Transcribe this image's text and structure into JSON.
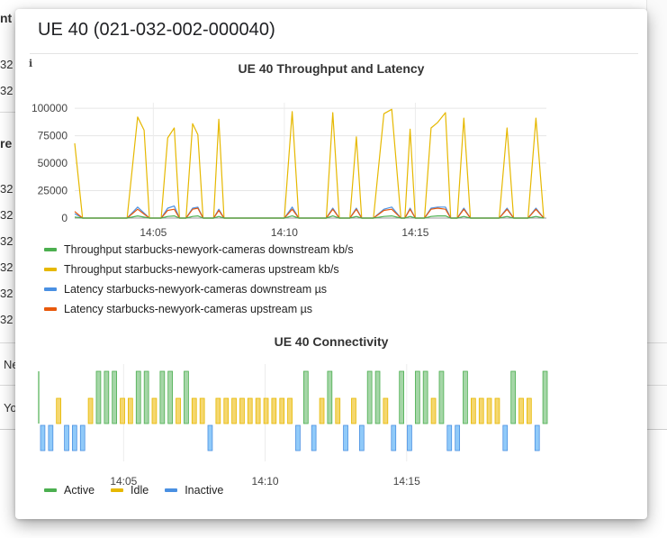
{
  "background": {
    "fragments": [
      "nt",
      "32",
      "32",
      "re",
      "32",
      "32",
      "32",
      "32",
      "32",
      "32",
      "Ne",
      "Yo"
    ]
  },
  "dialog": {
    "title": "UE 40 (021-032-002-000040)",
    "info_icon": "info-icon"
  },
  "colors": {
    "green": "#4caf50",
    "yellow": "#e6b800",
    "blue": "#4a90e2",
    "orange": "#e8590c",
    "bar_green_fill": "#a5d6a7",
    "bar_yellow_fill": "#f5d76e",
    "bar_blue_fill": "#90caf9"
  },
  "throughput_chart": {
    "title": "UE 40 Throughput and Latency",
    "yticks": [
      "100000",
      "75000",
      "50000",
      "25000",
      "0"
    ],
    "xticks": [
      "14:05",
      "14:10",
      "14:15"
    ],
    "legend": [
      {
        "label": "Throughput starbucks-newyork-cameras downstream kb/s",
        "color": "#4caf50"
      },
      {
        "label": "Throughput starbucks-newyork-cameras upstream kb/s",
        "color": "#e6b800"
      },
      {
        "label": "Latency starbucks-newyork-cameras downstream µs",
        "color": "#4a90e2"
      },
      {
        "label": "Latency starbucks-newyork-cameras upstream µs",
        "color": "#e8590c"
      }
    ]
  },
  "chart_data": [
    {
      "type": "line",
      "title": "UE 40 Throughput and Latency",
      "ylim": [
        0,
        105000
      ],
      "x_range": [
        "14:02:00",
        "14:17:00"
      ],
      "series": [
        {
          "name": "Throughput starbucks-newyork-cameras upstream kb/s",
          "color": "#e6b800",
          "points": [
            [
              0.0,
              68000
            ],
            [
              0.3,
              0
            ],
            [
              2.0,
              0
            ],
            [
              2.4,
              92000
            ],
            [
              2.65,
              80000
            ],
            [
              2.85,
              0
            ],
            [
              3.3,
              0
            ],
            [
              3.55,
              73000
            ],
            [
              3.8,
              82000
            ],
            [
              4.0,
              0
            ],
            [
              4.25,
              0
            ],
            [
              4.5,
              86000
            ],
            [
              4.7,
              76000
            ],
            [
              4.9,
              0
            ],
            [
              5.3,
              0
            ],
            [
              5.5,
              90000
            ],
            [
              5.7,
              0
            ],
            [
              8.0,
              0
            ],
            [
              8.3,
              97000
            ],
            [
              8.55,
              0
            ],
            [
              9.6,
              0
            ],
            [
              9.85,
              96000
            ],
            [
              10.1,
              0
            ],
            [
              10.5,
              0
            ],
            [
              10.75,
              74000
            ],
            [
              10.95,
              0
            ],
            [
              11.4,
              0
            ],
            [
              11.8,
              95000
            ],
            [
              12.1,
              99000
            ],
            [
              12.45,
              0
            ],
            [
              12.6,
              0
            ],
            [
              12.8,
              81000
            ],
            [
              13.0,
              0
            ],
            [
              13.35,
              0
            ],
            [
              13.6,
              82000
            ],
            [
              13.85,
              87000
            ],
            [
              14.15,
              96000
            ],
            [
              14.35,
              0
            ],
            [
              14.6,
              0
            ],
            [
              14.85,
              91000
            ],
            [
              15.1,
              0
            ],
            [
              16.2,
              0
            ],
            [
              16.5,
              82000
            ],
            [
              16.75,
              0
            ],
            [
              17.3,
              0
            ],
            [
              17.6,
              91000
            ],
            [
              17.9,
              0
            ]
          ]
        },
        {
          "name": "Latency starbucks-newyork-cameras downstream µs",
          "color": "#4a90e2",
          "points": [
            [
              0.0,
              4000
            ],
            [
              0.3,
              0
            ],
            [
              2.0,
              0
            ],
            [
              2.4,
              10000
            ],
            [
              2.85,
              0
            ],
            [
              3.3,
              0
            ],
            [
              3.55,
              9000
            ],
            [
              3.8,
              11000
            ],
            [
              4.0,
              0
            ],
            [
              4.25,
              0
            ],
            [
              4.5,
              9000
            ],
            [
              4.7,
              10000
            ],
            [
              4.9,
              0
            ],
            [
              5.3,
              0
            ],
            [
              5.5,
              8000
            ],
            [
              5.7,
              0
            ],
            [
              8.0,
              0
            ],
            [
              8.3,
              10000
            ],
            [
              8.55,
              0
            ],
            [
              9.6,
              0
            ],
            [
              9.85,
              9000
            ],
            [
              10.1,
              0
            ],
            [
              10.5,
              0
            ],
            [
              10.75,
              9000
            ],
            [
              10.95,
              0
            ],
            [
              11.4,
              0
            ],
            [
              11.8,
              8000
            ],
            [
              12.1,
              10000
            ],
            [
              12.45,
              0
            ],
            [
              12.6,
              0
            ],
            [
              12.8,
              9000
            ],
            [
              13.0,
              0
            ],
            [
              13.35,
              0
            ],
            [
              13.6,
              9000
            ],
            [
              13.85,
              10000
            ],
            [
              14.15,
              10000
            ],
            [
              14.35,
              0
            ],
            [
              14.6,
              0
            ],
            [
              14.85,
              9000
            ],
            [
              15.1,
              0
            ],
            [
              16.2,
              0
            ],
            [
              16.5,
              9000
            ],
            [
              16.75,
              0
            ],
            [
              17.3,
              0
            ],
            [
              17.6,
              9000
            ],
            [
              17.9,
              0
            ]
          ]
        },
        {
          "name": "Latency starbucks-newyork-cameras upstream µs",
          "color": "#e8590c",
          "points": [
            [
              0.0,
              6000
            ],
            [
              0.3,
              0
            ],
            [
              2.0,
              0
            ],
            [
              2.4,
              8000
            ],
            [
              2.85,
              0
            ],
            [
              3.3,
              0
            ],
            [
              3.55,
              7000
            ],
            [
              3.8,
              8000
            ],
            [
              4.0,
              0
            ],
            [
              4.25,
              0
            ],
            [
              4.5,
              8000
            ],
            [
              4.7,
              9000
            ],
            [
              4.9,
              0
            ],
            [
              5.3,
              0
            ],
            [
              5.5,
              7000
            ],
            [
              5.7,
              0
            ],
            [
              8.0,
              0
            ],
            [
              8.3,
              8000
            ],
            [
              8.55,
              0
            ],
            [
              9.6,
              0
            ],
            [
              9.85,
              8000
            ],
            [
              10.1,
              0
            ],
            [
              10.5,
              0
            ],
            [
              10.75,
              8000
            ],
            [
              10.95,
              0
            ],
            [
              11.4,
              0
            ],
            [
              11.8,
              7000
            ],
            [
              12.1,
              8000
            ],
            [
              12.45,
              0
            ],
            [
              12.6,
              0
            ],
            [
              12.8,
              8000
            ],
            [
              13.0,
              0
            ],
            [
              13.35,
              0
            ],
            [
              13.6,
              8000
            ],
            [
              13.85,
              9000
            ],
            [
              14.15,
              8000
            ],
            [
              14.35,
              0
            ],
            [
              14.6,
              0
            ],
            [
              14.85,
              8000
            ],
            [
              15.1,
              0
            ],
            [
              16.2,
              0
            ],
            [
              16.5,
              8000
            ],
            [
              16.75,
              0
            ],
            [
              17.3,
              0
            ],
            [
              17.6,
              8000
            ],
            [
              17.9,
              0
            ]
          ]
        },
        {
          "name": "Throughput starbucks-newyork-cameras downstream kb/s",
          "color": "#4caf50",
          "points": [
            [
              0.0,
              1000
            ],
            [
              0.3,
              0
            ],
            [
              2.0,
              0
            ],
            [
              2.4,
              2000
            ],
            [
              2.85,
              0
            ],
            [
              3.3,
              0
            ],
            [
              3.55,
              1500
            ],
            [
              3.8,
              2000
            ],
            [
              4.0,
              0
            ],
            [
              4.25,
              0
            ],
            [
              4.5,
              1500
            ],
            [
              4.7,
              2000
            ],
            [
              4.9,
              0
            ],
            [
              5.3,
              0
            ],
            [
              5.5,
              1500
            ],
            [
              5.7,
              0
            ],
            [
              8.0,
              0
            ],
            [
              8.3,
              2000
            ],
            [
              8.55,
              0
            ],
            [
              9.6,
              0
            ],
            [
              9.85,
              2000
            ],
            [
              10.1,
              0
            ],
            [
              10.5,
              0
            ],
            [
              10.75,
              1500
            ],
            [
              10.95,
              0
            ],
            [
              11.4,
              0
            ],
            [
              11.8,
              1500
            ],
            [
              12.1,
              2000
            ],
            [
              12.45,
              0
            ],
            [
              12.6,
              0
            ],
            [
              12.8,
              1500
            ],
            [
              13.0,
              0
            ],
            [
              13.35,
              0
            ],
            [
              13.6,
              1500
            ],
            [
              13.85,
              2000
            ],
            [
              14.15,
              2000
            ],
            [
              14.35,
              0
            ],
            [
              14.6,
              0
            ],
            [
              14.85,
              1500
            ],
            [
              15.1,
              0
            ],
            [
              16.2,
              0
            ],
            [
              16.5,
              1500
            ],
            [
              16.75,
              0
            ],
            [
              17.3,
              0
            ],
            [
              17.6,
              1500
            ],
            [
              17.9,
              0
            ]
          ]
        }
      ]
    },
    {
      "type": "bar",
      "title": "UE 40 Connectivity",
      "legend": [
        "Active",
        "Idle",
        "Inactive"
      ],
      "states": [
        "Inactive",
        "Inactive",
        "Idle",
        "Inactive",
        "Inactive",
        "Inactive",
        "Idle",
        "Active",
        "Active",
        "Active",
        "Idle",
        "Idle",
        "Active",
        "Active",
        "Idle",
        "Active",
        "Active",
        "Idle",
        "Active",
        "Idle",
        "Idle",
        "Inactive",
        "Idle",
        "Idle",
        "Idle",
        "Idle",
        "Idle",
        "Idle",
        "Idle",
        "Idle",
        "Idle",
        "Idle",
        "Inactive",
        "Active",
        "Inactive",
        "Idle",
        "Active",
        "Idle",
        "Inactive",
        "Idle",
        "Inactive",
        "Active",
        "Active",
        "Idle",
        "Inactive",
        "Active",
        "Inactive",
        "Active",
        "Active",
        "Idle",
        "Active",
        "Inactive",
        "Inactive",
        "Active",
        "Idle",
        "Idle",
        "Idle",
        "Idle",
        "Inactive",
        "Active",
        "Idle",
        "Idle",
        "Inactive",
        "Active"
      ]
    }
  ],
  "connectivity_chart": {
    "title": "UE 40 Connectivity",
    "xticks": [
      "14:05",
      "14:10",
      "14:15"
    ],
    "legend": [
      {
        "label": "Active",
        "color": "#4caf50"
      },
      {
        "label": "Idle",
        "color": "#e6b800"
      },
      {
        "label": "Inactive",
        "color": "#4a90e2"
      }
    ]
  }
}
